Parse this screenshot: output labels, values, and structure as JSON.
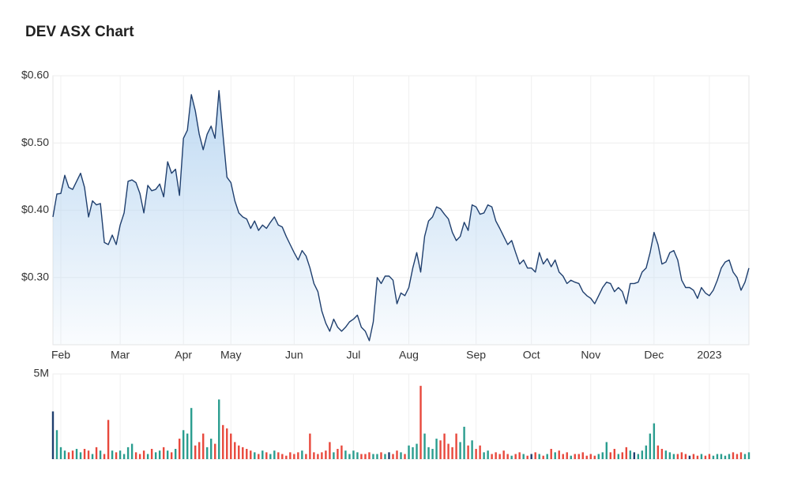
{
  "chart_data": {
    "type": "line",
    "title": "DEV ASX Chart",
    "categories": [
      null,
      null,
      "Feb",
      null,
      null,
      null,
      null,
      null,
      null,
      null,
      null,
      null,
      null,
      null,
      null,
      null,
      null,
      "Mar",
      null,
      null,
      null,
      null,
      null,
      null,
      null,
      null,
      null,
      null,
      null,
      null,
      null,
      null,
      null,
      "Apr",
      null,
      null,
      null,
      null,
      null,
      null,
      null,
      null,
      null,
      null,
      null,
      "May",
      null,
      null,
      null,
      null,
      null,
      null,
      null,
      null,
      null,
      null,
      null,
      null,
      null,
      null,
      null,
      "Jun",
      null,
      null,
      null,
      null,
      null,
      null,
      null,
      null,
      null,
      null,
      null,
      null,
      null,
      null,
      "Jul",
      null,
      null,
      null,
      null,
      null,
      null,
      null,
      null,
      null,
      null,
      null,
      null,
      null,
      "Aug",
      null,
      null,
      null,
      null,
      null,
      null,
      null,
      null,
      null,
      null,
      null,
      null,
      null,
      null,
      null,
      null,
      "Sep",
      null,
      null,
      null,
      null,
      null,
      null,
      null,
      null,
      null,
      null,
      null,
      null,
      null,
      "Oct",
      null,
      null,
      null,
      null,
      null,
      null,
      null,
      null,
      null,
      null,
      null,
      null,
      null,
      null,
      "Nov",
      null,
      null,
      null,
      null,
      null,
      null,
      null,
      null,
      null,
      null,
      null,
      null,
      null,
      null,
      null,
      "Dec",
      null,
      null,
      null,
      null,
      null,
      null,
      null,
      null,
      null,
      null,
      null,
      null,
      null,
      "2023",
      null,
      null,
      null,
      null,
      null,
      null,
      null,
      null,
      null,
      null
    ],
    "series": [
      {
        "type": "line",
        "color": "#1f3f6e",
        "fill": "#bcd8f2",
        "values": [
          0.39,
          0.424,
          0.425,
          0.452,
          0.434,
          0.431,
          0.443,
          0.455,
          0.434,
          0.39,
          0.414,
          0.408,
          0.41,
          0.352,
          0.349,
          0.363,
          0.349,
          0.378,
          0.396,
          0.443,
          0.445,
          0.441,
          0.425,
          0.396,
          0.437,
          0.429,
          0.431,
          0.439,
          0.42,
          0.472,
          0.455,
          0.461,
          0.422,
          0.507,
          0.519,
          0.572,
          0.548,
          0.513,
          0.49,
          0.513,
          0.525,
          0.507,
          0.578,
          0.513,
          0.449,
          0.441,
          0.414,
          0.396,
          0.39,
          0.387,
          0.373,
          0.384,
          0.37,
          0.378,
          0.373,
          0.382,
          0.39,
          0.378,
          0.375,
          0.361,
          0.349,
          0.337,
          0.326,
          0.34,
          0.332,
          0.314,
          0.291,
          0.279,
          0.25,
          0.232,
          0.22,
          0.238,
          0.226,
          0.22,
          0.226,
          0.234,
          0.238,
          0.244,
          0.226,
          0.22,
          0.206,
          0.234,
          0.3,
          0.291,
          0.302,
          0.302,
          0.296,
          0.261,
          0.277,
          0.273,
          0.285,
          0.314,
          0.337,
          0.308,
          0.361,
          0.384,
          0.39,
          0.405,
          0.402,
          0.394,
          0.387,
          0.367,
          0.355,
          0.361,
          0.382,
          0.37,
          0.408,
          0.405,
          0.394,
          0.396,
          0.408,
          0.405,
          0.384,
          0.373,
          0.361,
          0.349,
          0.355,
          0.337,
          0.32,
          0.326,
          0.314,
          0.314,
          0.308,
          0.337,
          0.32,
          0.328,
          0.316,
          0.326,
          0.308,
          0.302,
          0.291,
          0.296,
          0.293,
          0.291,
          0.279,
          0.273,
          0.269,
          0.261,
          0.273,
          0.285,
          0.293,
          0.291,
          0.279,
          0.285,
          0.279,
          0.261,
          0.291,
          0.291,
          0.293,
          0.308,
          0.314,
          0.337,
          0.367,
          0.349,
          0.32,
          0.323,
          0.337,
          0.34,
          0.326,
          0.296,
          0.285,
          0.285,
          0.281,
          0.269,
          0.285,
          0.277,
          0.273,
          0.281,
          0.296,
          0.314,
          0.323,
          0.326,
          0.308,
          0.3,
          0.281,
          0.293,
          0.314
        ]
      },
      {
        "type": "bar",
        "axis": "y2",
        "color": "#1f3f6e",
        "up_color": "#2a9d8f",
        "down_color": "#e8483c",
        "values": [
          2800000,
          1700000,
          700000,
          500000,
          400000,
          500000,
          600000,
          400000,
          600000,
          500000,
          300000,
          700000,
          500000,
          300000,
          2300000,
          500000,
          400000,
          500000,
          300000,
          700000,
          900000,
          400000,
          300000,
          500000,
          300000,
          600000,
          400000,
          500000,
          700000,
          500000,
          400000,
          600000,
          1200000,
          1700000,
          1500000,
          3000000,
          800000,
          1000000,
          1500000,
          700000,
          1200000,
          900000,
          3500000,
          2000000,
          1800000,
          1500000,
          1000000,
          800000,
          700000,
          600000,
          500000,
          400000,
          300000,
          500000,
          400000,
          300000,
          500000,
          400000,
          300000,
          200000,
          400000,
          300000,
          400000,
          500000,
          300000,
          1500000,
          400000,
          300000,
          400000,
          500000,
          1000000,
          400000,
          600000,
          800000,
          500000,
          300000,
          500000,
          400000,
          300000,
          300000,
          400000,
          300000,
          300000,
          400000,
          300000,
          400000,
          300000,
          500000,
          400000,
          300000,
          800000,
          700000,
          900000,
          4300000,
          1500000,
          700000,
          600000,
          1200000,
          1100000,
          1500000,
          900000,
          700000,
          1500000,
          1000000,
          1900000,
          800000,
          1100000,
          600000,
          800000,
          400000,
          500000,
          300000,
          400000,
          300000,
          500000,
          300000,
          200000,
          300000,
          400000,
          300000,
          200000,
          300000,
          400000,
          300000,
          200000,
          300000,
          600000,
          400000,
          500000,
          300000,
          400000,
          200000,
          300000,
          300000,
          400000,
          200000,
          300000,
          200000,
          300000,
          400000,
          1000000,
          400000,
          600000,
          300000,
          400000,
          700000,
          500000,
          400000,
          300000,
          500000,
          800000,
          1500000,
          2100000,
          800000,
          600000,
          500000,
          400000,
          300000,
          300000,
          400000,
          300000,
          200000,
          300000,
          200000,
          300000,
          200000,
          300000,
          200000,
          300000,
          300000,
          200000,
          300000,
          400000,
          300000,
          400000,
          300000,
          400000
        ]
      }
    ],
    "ylim": [
      0.2,
      0.6
    ],
    "yticks": [
      {
        "value": 0.3,
        "label": "$0.30"
      },
      {
        "value": 0.4,
        "label": "$0.40"
      },
      {
        "value": 0.5,
        "label": "$0.50"
      },
      {
        "value": 0.6,
        "label": "$0.60"
      }
    ],
    "y2lim": [
      0,
      5000000
    ],
    "y2ticks": [
      {
        "value": 5000000,
        "label": "5M"
      }
    ],
    "grid": true
  }
}
